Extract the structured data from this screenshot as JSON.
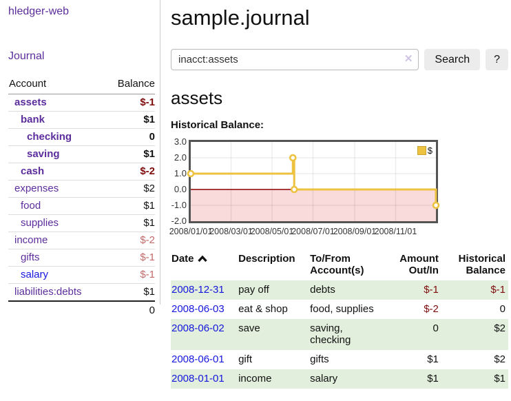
{
  "sidebar": {
    "app_title": "hledger-web",
    "journal_link": "Journal",
    "accounts_table": {
      "headers": {
        "account": "Account",
        "balance": "Balance"
      },
      "rows": [
        {
          "name": "assets",
          "depth": 0,
          "bold": true,
          "balance": "$-1",
          "balance_style": "neg-strong"
        },
        {
          "name": "bank",
          "depth": 1,
          "bold": true,
          "balance": "$1",
          "balance_style": ""
        },
        {
          "name": "checking",
          "depth": 2,
          "bold": true,
          "balance": "0",
          "balance_style": ""
        },
        {
          "name": "saving",
          "depth": 2,
          "bold": true,
          "balance": "$1",
          "balance_style": ""
        },
        {
          "name": "cash",
          "depth": 1,
          "bold": true,
          "balance": "$-2",
          "balance_style": "neg-strong"
        },
        {
          "name": "expenses",
          "depth": 0,
          "bold": false,
          "balance": "$2",
          "balance_style": ""
        },
        {
          "name": "food",
          "depth": 1,
          "bold": false,
          "balance": "$1",
          "balance_style": ""
        },
        {
          "name": "supplies",
          "depth": 1,
          "bold": false,
          "balance": "$1",
          "balance_style": ""
        },
        {
          "name": "income",
          "depth": 0,
          "bold": false,
          "balance": "$-2",
          "balance_style": "neg-soft"
        },
        {
          "name": "gifts",
          "depth": 1,
          "bold": false,
          "balance": "$-1",
          "balance_style": "neg-soft"
        },
        {
          "name": "salary",
          "depth": 1,
          "bold": false,
          "balance": "$-1",
          "balance_style": "neg-soft",
          "link_variant": "blue"
        },
        {
          "name": "liabilities:debts",
          "depth": 0,
          "bold": false,
          "balance": "$1",
          "balance_style": ""
        }
      ],
      "total": "0"
    }
  },
  "header": {
    "title": "sample.journal"
  },
  "search": {
    "value": "inacct:assets",
    "clear_icon": "✕",
    "button_label": "Search",
    "help_label": "?"
  },
  "account_page": {
    "heading": "assets",
    "chart_label": "Historical Balance:"
  },
  "chart_data": {
    "type": "line",
    "step": true,
    "title": "Historical Balance",
    "series": [
      {
        "name": "$",
        "color": "#edc240",
        "points": [
          [
            "2008-01-01",
            1
          ],
          [
            "2008-06-01",
            2
          ],
          [
            "2008-06-03",
            0
          ],
          [
            "2008-12-31",
            -1
          ]
        ]
      }
    ],
    "xrange": [
      "2008-01-01",
      "2008-12-31"
    ],
    "ylim": [
      -2,
      3
    ],
    "yticks": [
      "3.0",
      "2.0",
      "1.0",
      "0.0",
      "-1.0",
      "-2.0"
    ],
    "xticks": [
      "2008/01/01",
      "2008/03/01",
      "2008/05/01",
      "2008/07/01",
      "2008/09/01",
      "2008/11/01"
    ],
    "legend": {
      "label": "$",
      "position": "top-right"
    },
    "grid": true,
    "negative_region_fill": "#f9dbdb",
    "zero_line_color": "#8b0000"
  },
  "transactions": {
    "headers": {
      "date": "Date",
      "description": "Description",
      "tofrom": "To/From Account(s)",
      "amount": "Amount Out/In",
      "balance": "Historical Balance"
    },
    "rows": [
      {
        "date": "2008-12-31",
        "description": "pay off",
        "tofrom": "debts",
        "amount": "$-1",
        "amount_neg": true,
        "balance": "$-1",
        "balance_neg": true
      },
      {
        "date": "2008-06-03",
        "description": "eat & shop",
        "tofrom": "food, supplies",
        "amount": "$-2",
        "amount_neg": true,
        "balance": "0",
        "balance_neg": false
      },
      {
        "date": "2008-06-02",
        "description": "save",
        "tofrom": "saving,\nchecking",
        "amount": "0",
        "amount_neg": false,
        "balance": "$2",
        "balance_neg": false
      },
      {
        "date": "2008-06-01",
        "description": "gift",
        "tofrom": "gifts",
        "amount": "$1",
        "amount_neg": false,
        "balance": "$2",
        "balance_neg": false
      },
      {
        "date": "2008-01-01",
        "description": "income",
        "tofrom": "salary",
        "amount": "$1",
        "amount_neg": false,
        "balance": "$1",
        "balance_neg": false
      }
    ]
  },
  "colors": {
    "link_purple": "#5c2d9c",
    "link_blue": "#1515dd",
    "negative_strong": "#7f0c0c",
    "negative_soft": "#c46a6a",
    "row_green": "#e2efdc",
    "series_gold": "#edc240",
    "negative_region_pink": "#f9dbdb",
    "zero_line_red": "#8b0000"
  }
}
